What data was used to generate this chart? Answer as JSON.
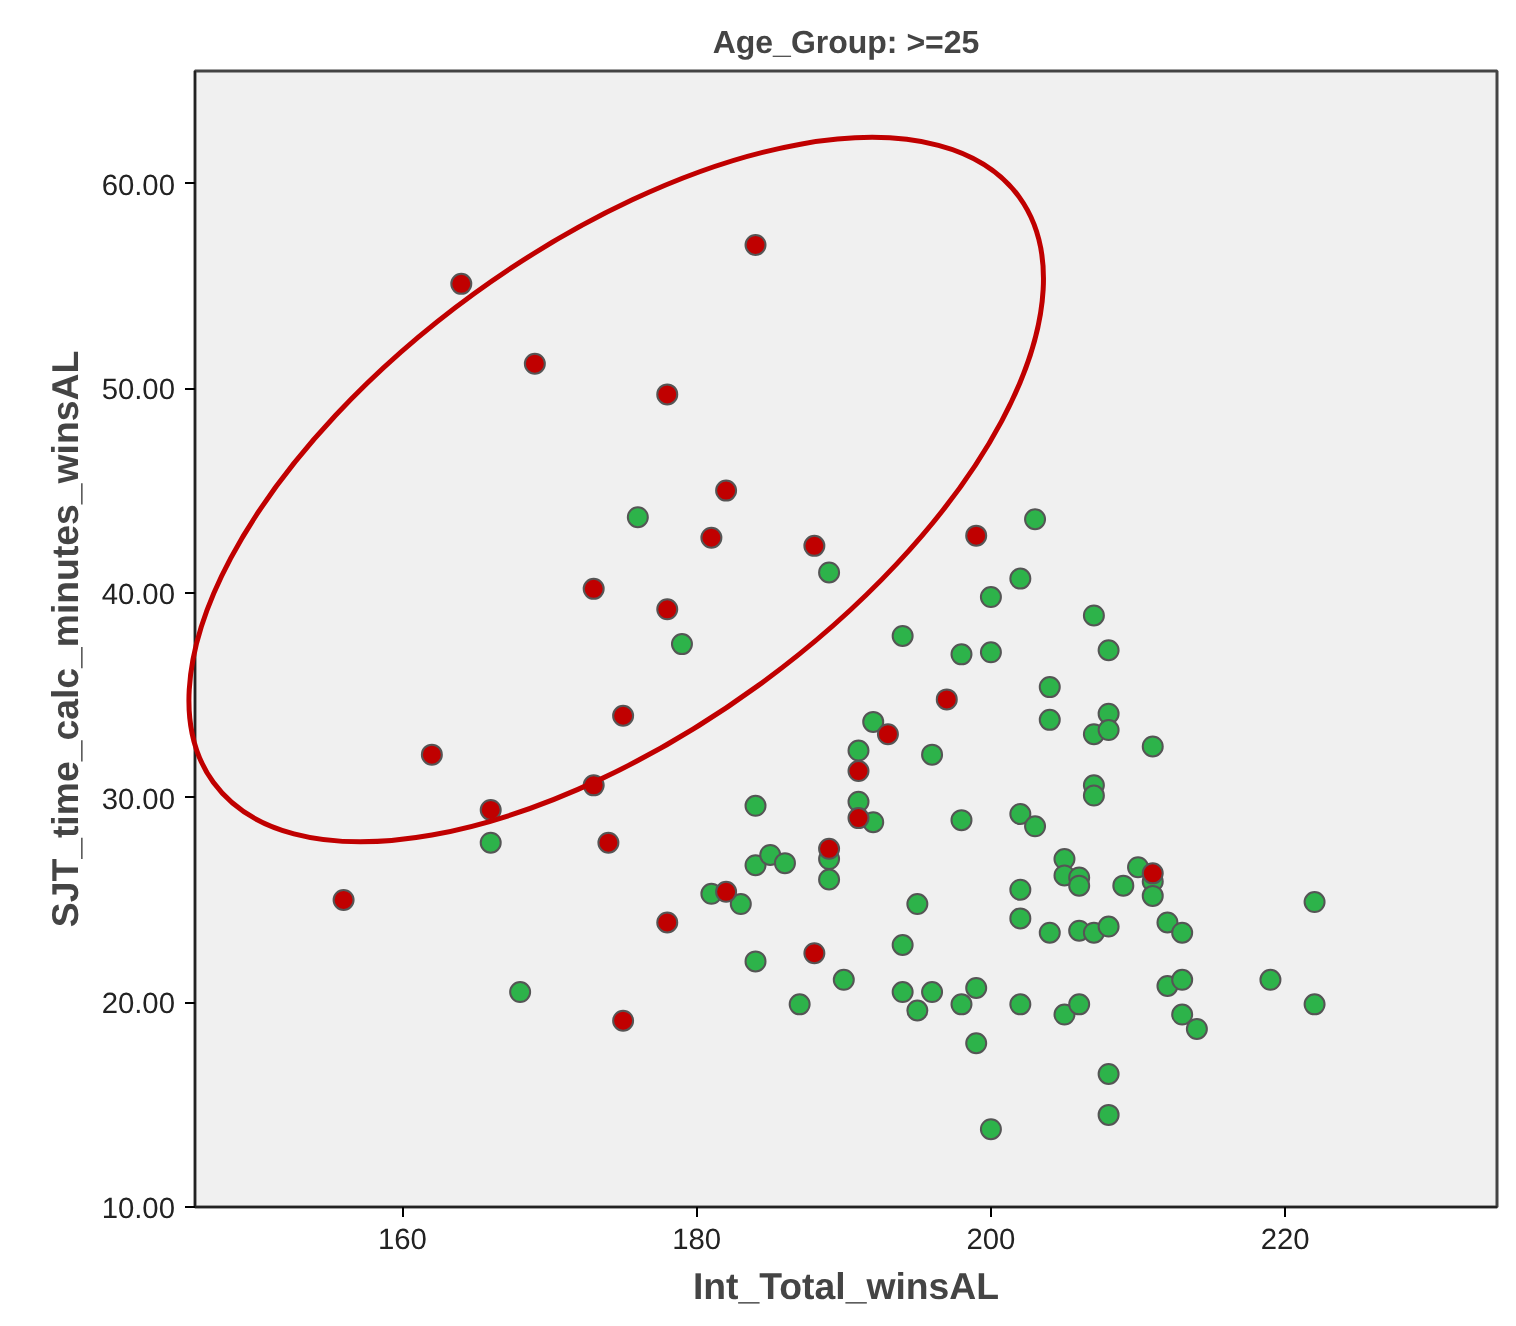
{
  "chart_data": {
    "type": "scatter",
    "title": "Age_Group: >=25",
    "xlabel": "Int_Total_winsAL",
    "ylabel": "SJT_time_calc_minutes_winsAL",
    "xlim": [
      145.9,
      234.4
    ],
    "ylim": [
      10,
      65.5
    ],
    "xticks": [
      160,
      180,
      200,
      220
    ],
    "yticks": [
      {
        "value": 10,
        "label": "10.00"
      },
      {
        "value": 20,
        "label": "20.00"
      },
      {
        "value": 30,
        "label": "30.00"
      },
      {
        "value": 40,
        "label": "40.00"
      },
      {
        "value": 50,
        "label": "50.00"
      },
      {
        "value": 60,
        "label": "60.00"
      }
    ],
    "marker": "circle",
    "series": [
      {
        "color": "#2db34a",
        "x": [
          176,
          189,
          179,
          203,
          202,
          200,
          207,
          194,
          198,
          200,
          208,
          204,
          204,
          208,
          207,
          208,
          192,
          191,
          196,
          211,
          207,
          207,
          166,
          184,
          191,
          192,
          198,
          202,
          203,
          184,
          185,
          186,
          189,
          189,
          181,
          183,
          195,
          202,
          205,
          205,
          206,
          206,
          209,
          210,
          211,
          211,
          202,
          204,
          206,
          207,
          208,
          212,
          213,
          222,
          184,
          194,
          168,
          187,
          190,
          194,
          195,
          196,
          198,
          199,
          199,
          202,
          205,
          206,
          208,
          208,
          200,
          212,
          213,
          213,
          214,
          219,
          222
        ],
        "values": [
          43.7,
          41.0,
          37.5,
          43.6,
          40.7,
          39.8,
          38.9,
          37.9,
          37.0,
          37.1,
          37.2,
          35.4,
          33.8,
          34.1,
          33.1,
          33.3,
          33.7,
          32.3,
          32.1,
          32.5,
          30.6,
          30.1,
          27.8,
          29.6,
          29.8,
          28.8,
          28.9,
          29.2,
          28.6,
          26.7,
          27.2,
          26.8,
          27.0,
          26.0,
          25.3,
          24.8,
          24.8,
          25.5,
          27.0,
          26.2,
          26.1,
          25.7,
          25.7,
          26.6,
          25.9,
          25.2,
          24.1,
          23.4,
          23.5,
          23.4,
          23.7,
          23.9,
          23.4,
          24.9,
          22.0,
          22.8,
          20.5,
          19.9,
          21.1,
          20.5,
          19.6,
          20.5,
          19.9,
          20.7,
          18.0,
          19.9,
          19.4,
          19.9,
          16.5,
          14.5,
          13.8,
          20.8,
          21.1,
          19.4,
          18.7,
          21.1,
          19.9
        ]
      },
      {
        "color": "#c00000",
        "x": [
          164,
          184,
          169,
          178,
          182,
          181,
          188,
          199,
          173,
          178,
          175,
          197,
          193,
          162,
          191,
          173,
          166,
          191,
          174,
          189,
          156,
          182,
          211,
          178,
          188,
          175
        ],
        "values": [
          55.1,
          57.0,
          51.2,
          49.7,
          45.0,
          42.7,
          42.3,
          42.8,
          40.2,
          39.2,
          34.0,
          34.8,
          33.1,
          32.1,
          31.3,
          30.6,
          29.4,
          29.0,
          27.8,
          27.5,
          25.0,
          25.4,
          26.3,
          23.9,
          22.4,
          19.1
        ]
      }
    ]
  }
}
